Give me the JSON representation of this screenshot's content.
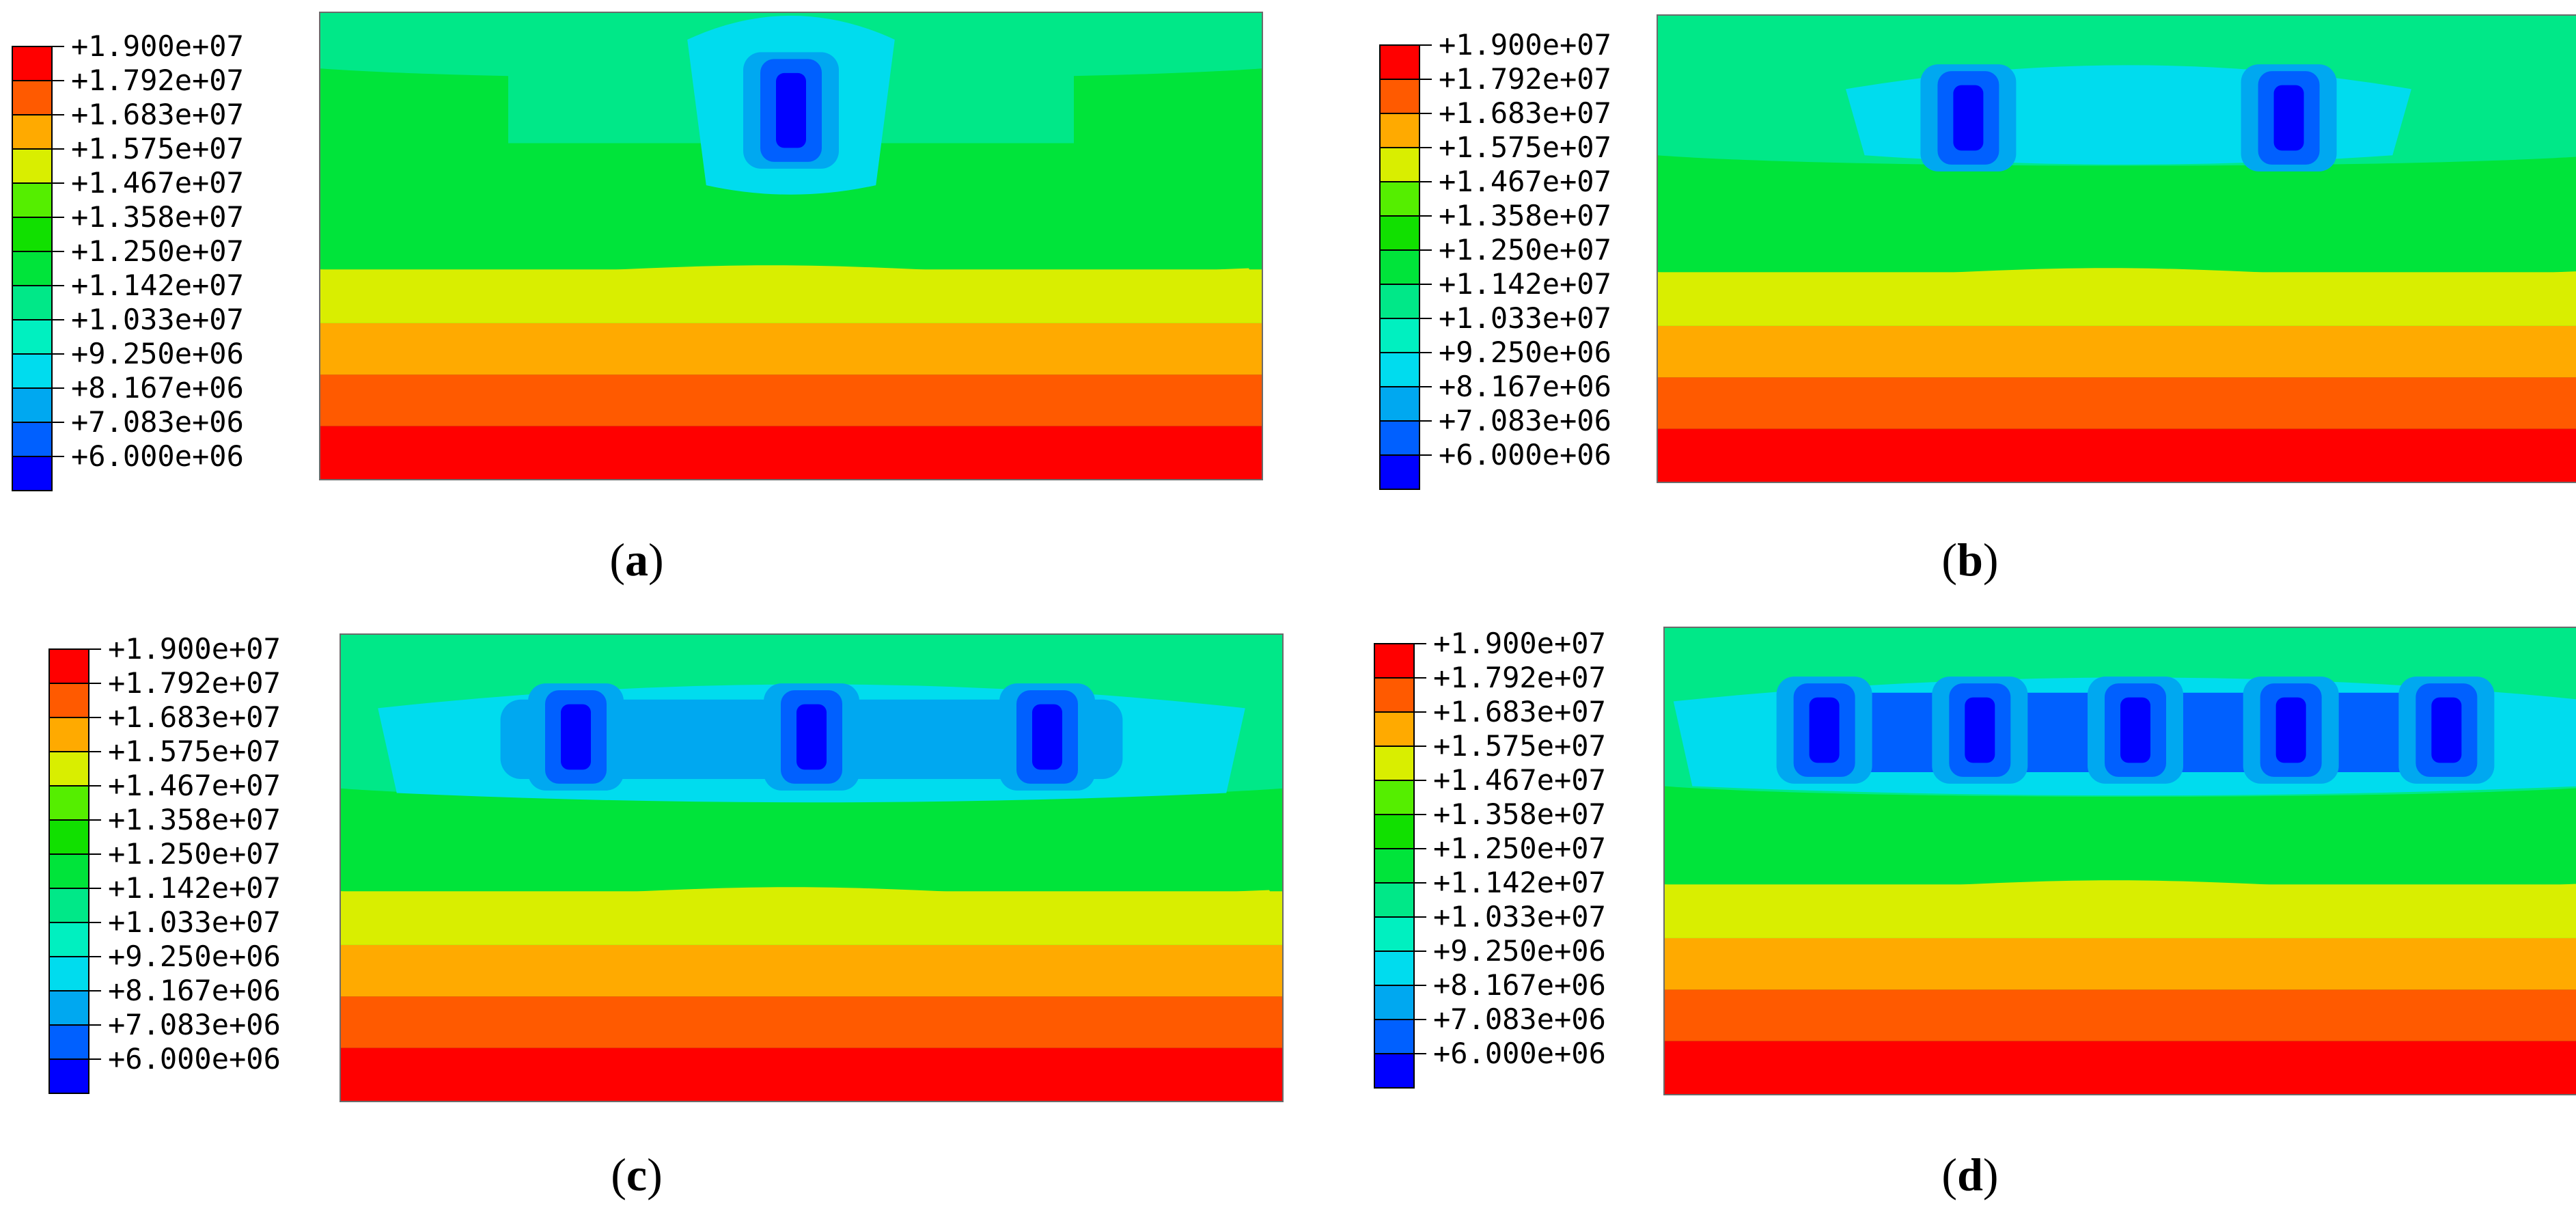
{
  "legend": {
    "levels": [
      "+1.900e+07",
      "+1.792e+07",
      "+1.683e+07",
      "+1.575e+07",
      "+1.467e+07",
      "+1.358e+07",
      "+1.250e+07",
      "+1.142e+07",
      "+1.033e+07",
      "+9.250e+06",
      "+8.167e+06",
      "+7.083e+06",
      "+6.000e+06"
    ],
    "colors": [
      "#ff0000",
      "#ff5a00",
      "#ffaa00",
      "#d9ee00",
      "#55ee00",
      "#11e000",
      "#00e43a",
      "#00e888",
      "#00f0c0",
      "#00dcee",
      "#00a8f0",
      "#0060ff",
      "#0000ff"
    ]
  },
  "panels": [
    {
      "letter": "a",
      "open": "(",
      "close": ")",
      "pillars": 1
    },
    {
      "letter": "b",
      "open": "(",
      "close": ")",
      "pillars": 2
    },
    {
      "letter": "c",
      "open": "(",
      "close": ")",
      "pillars": 3
    },
    {
      "letter": "d",
      "open": "(",
      "close": ")",
      "pillars": 5
    }
  ]
}
